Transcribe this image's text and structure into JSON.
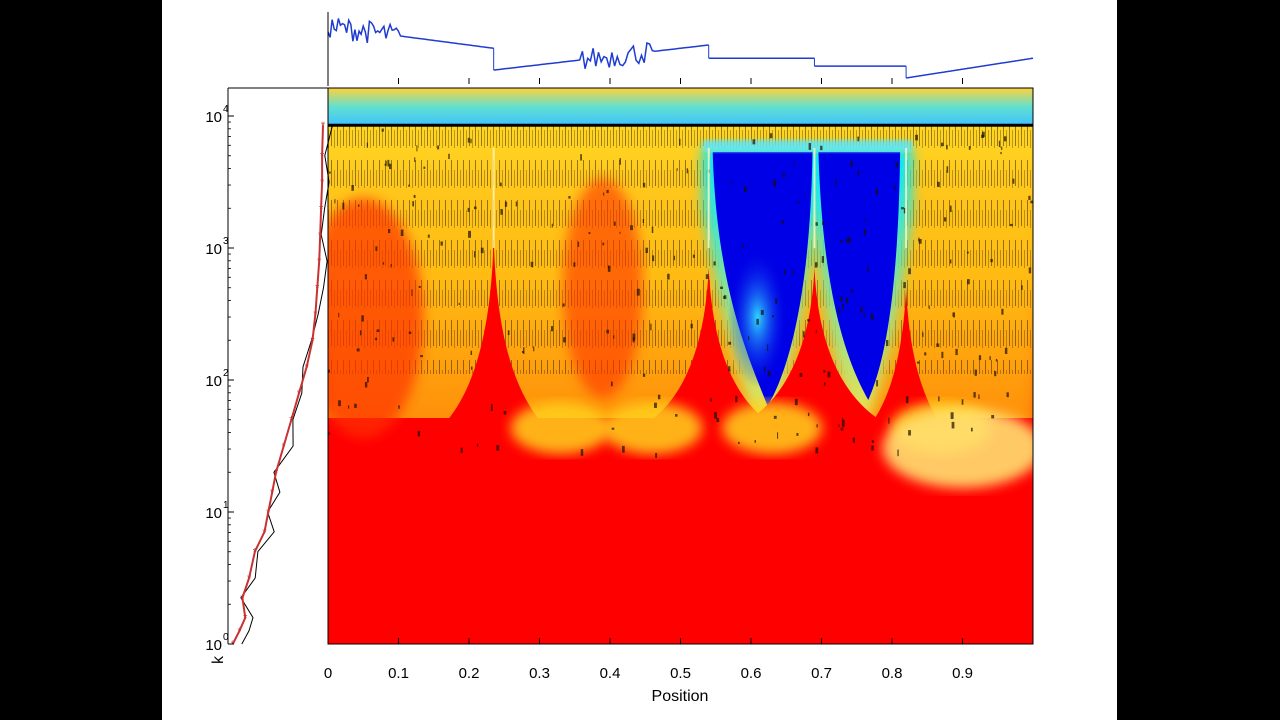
{
  "chart_data": {
    "type": "heatmap",
    "title": "",
    "xlabel": "Position",
    "ylabel": "k",
    "xlim": [
      0,
      1
    ],
    "ylim_exponent": [
      0,
      4.25
    ],
    "x_ticks": [
      "0",
      "0.1",
      "0.2",
      "0.3",
      "0.4",
      "0.5",
      "0.6",
      "0.7",
      "0.8",
      "0.9"
    ],
    "y_ticks": [
      {
        "base": "10",
        "exp": "0"
      },
      {
        "base": "10",
        "exp": "1"
      },
      {
        "base": "10",
        "exp": "2"
      },
      {
        "base": "10",
        "exp": "3"
      },
      {
        "base": "10",
        "exp": "4"
      }
    ],
    "y_scale": "log",
    "colormap": "jet",
    "colors": {
      "hot": "#ff0000",
      "warm": "#ffd21e",
      "mid": "#00ffff",
      "cold": "#0000e6",
      "signal": "#1e3cd2",
      "spectrum": "#c83232"
    },
    "singularities_x": [
      0.235,
      0.54,
      0.69,
      0.82
    ],
    "reference_line_log10k": 3.93,
    "signal_segments": [
      {
        "x": [
          0.0,
          0.235
        ],
        "y_start": 0.78,
        "y_end": 0.45,
        "noisy_ranges": [
          [
            0.0,
            0.1
          ]
        ]
      },
      {
        "x": [
          0.235,
          0.54
        ],
        "y_start": 0.12,
        "y_end": 0.5,
        "noisy_ranges": [
          [
            0.36,
            0.46
          ]
        ]
      },
      {
        "x": [
          0.54,
          0.69
        ],
        "y_start": 0.3,
        "y_end": 0.3
      },
      {
        "x": [
          0.69,
          0.82
        ],
        "y_start": 0.18,
        "y_end": 0.18
      },
      {
        "x": [
          0.82,
          1.0
        ],
        "y_start": 0.0,
        "y_end": 0.3
      }
    ],
    "left_spectrum": {
      "log10k": [
        0.0,
        0.1,
        0.2,
        0.35,
        0.5,
        0.7,
        0.85,
        1.0,
        1.15,
        1.3,
        1.5,
        1.7,
        1.9,
        2.1,
        2.3,
        2.5,
        2.7,
        2.9,
        3.1,
        3.3,
        3.5,
        3.7,
        3.93
      ],
      "value": [
        0.05,
        0.12,
        0.18,
        0.15,
        0.22,
        0.28,
        0.38,
        0.42,
        0.46,
        0.5,
        0.58,
        0.66,
        0.74,
        0.82,
        0.88,
        0.91,
        0.93,
        0.95,
        0.96,
        0.97,
        0.98,
        0.98,
        0.99
      ]
    }
  }
}
